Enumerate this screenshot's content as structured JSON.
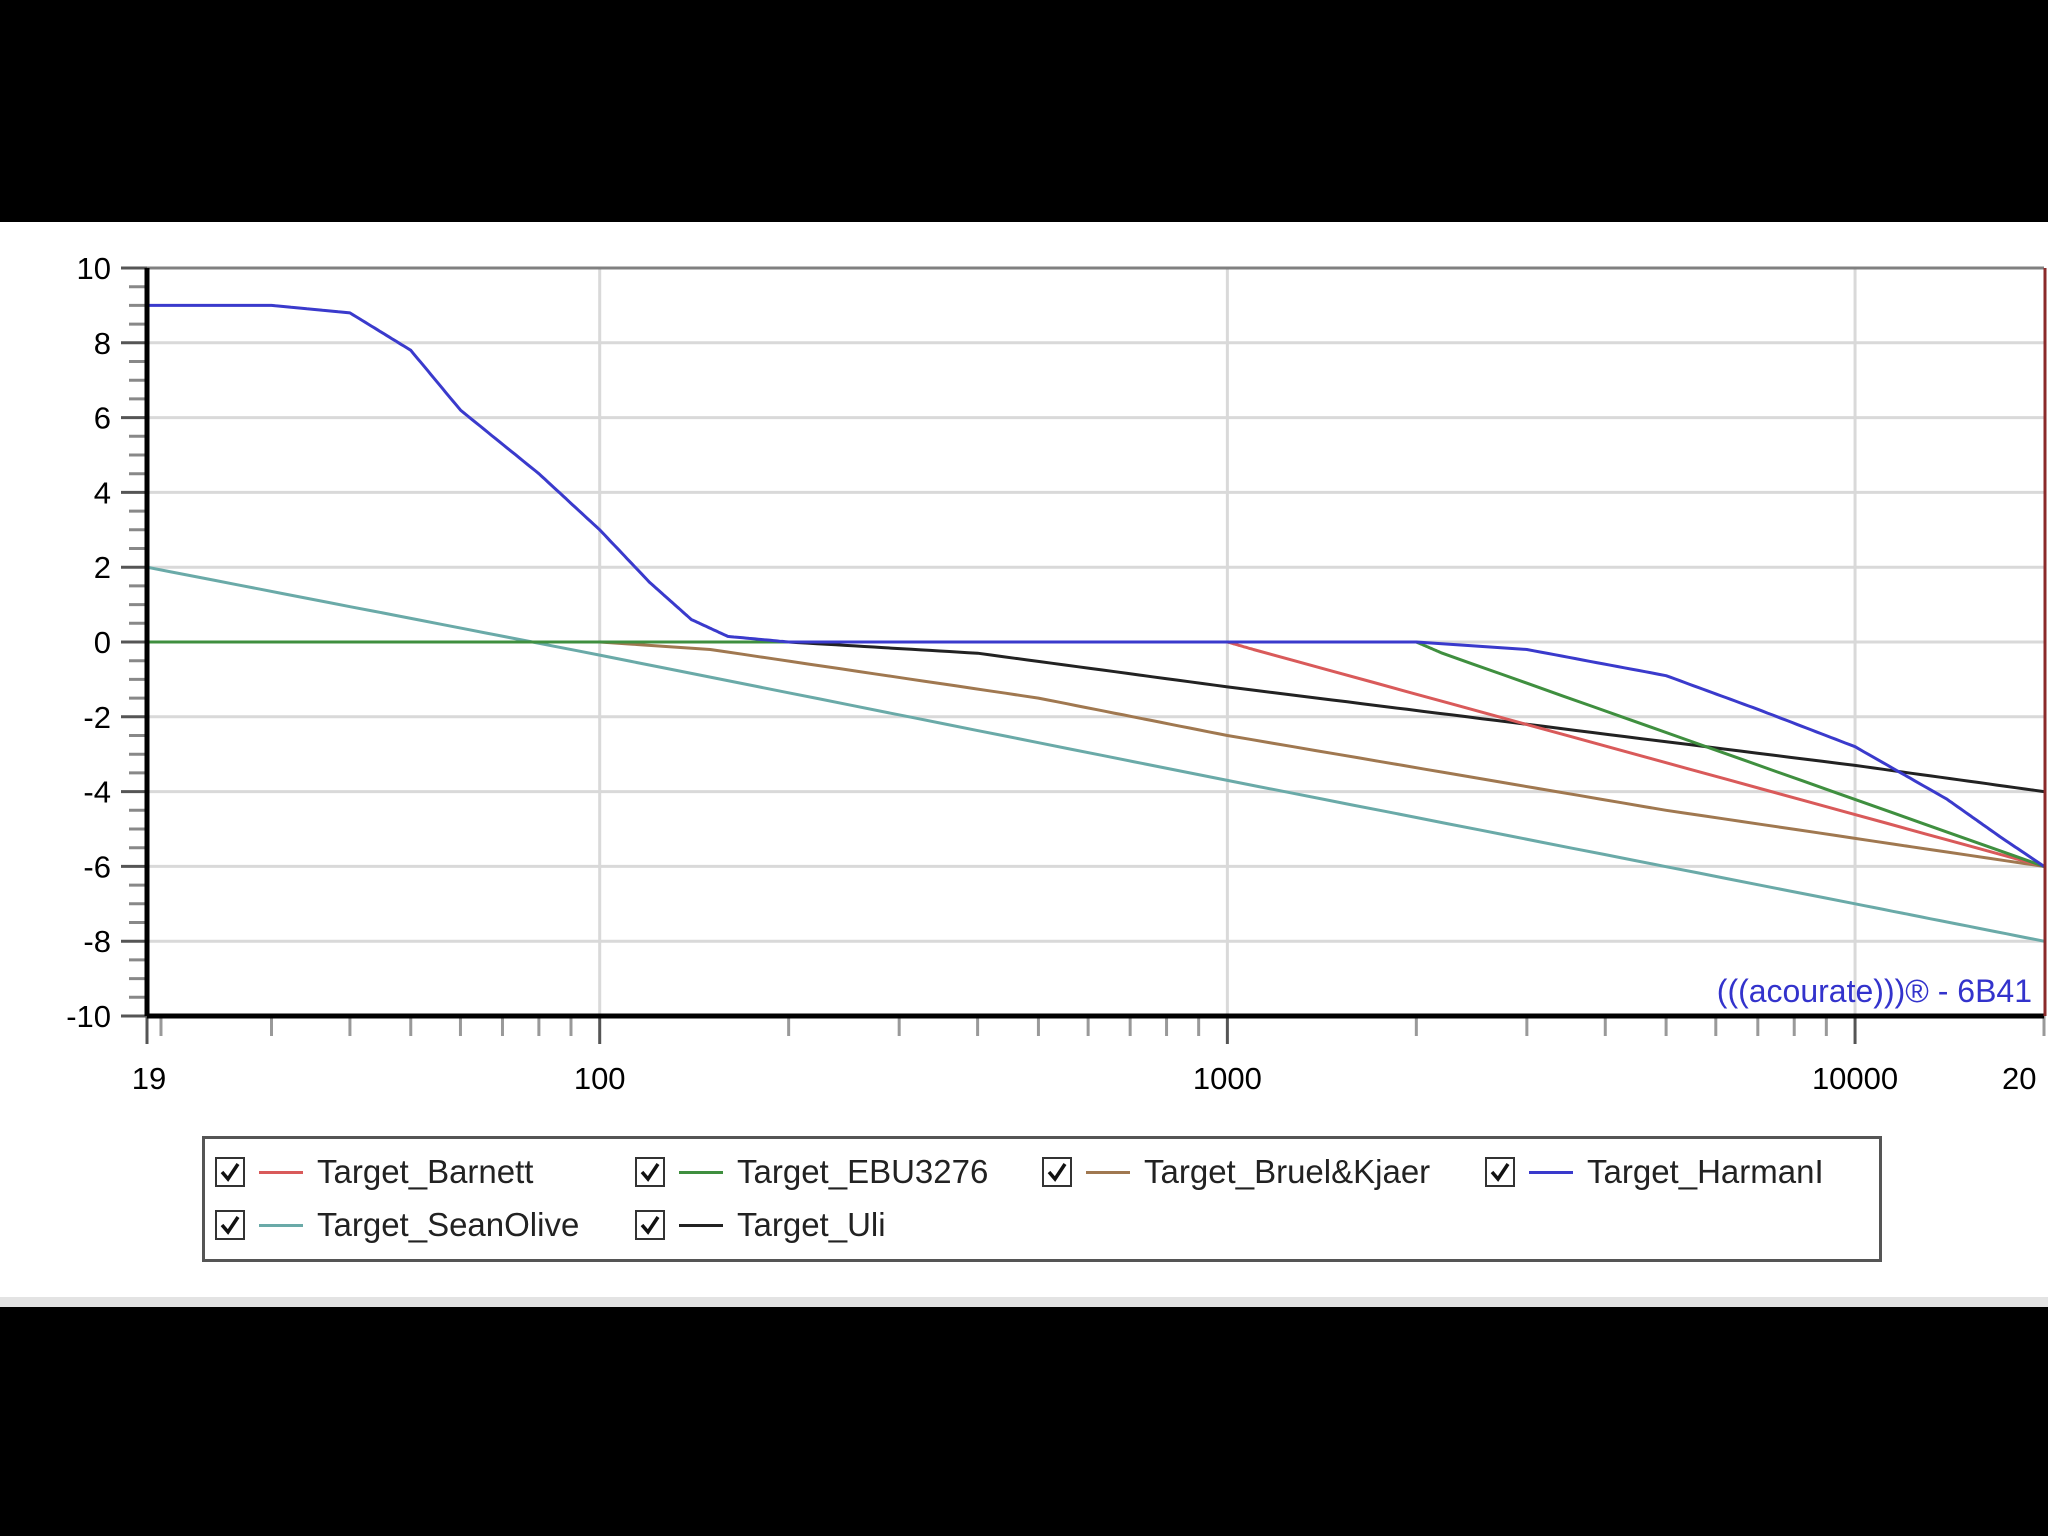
{
  "chart_data": {
    "type": "line",
    "title": "",
    "xlabel": "",
    "ylabel": "",
    "x_scale": "log",
    "xlim": [
      19,
      20000
    ],
    "ylim": [
      -10,
      10
    ],
    "grid": true,
    "legend_position": "bottom",
    "x_tick_labels": [
      "19",
      "100",
      "1000",
      "10000",
      "20"
    ],
    "y_tick_labels": [
      "10",
      "8",
      "6",
      "4",
      "2",
      "0",
      "-2",
      "-4",
      "-6",
      "-8",
      "-10"
    ],
    "watermark": "(((acourate)))® - 6B41",
    "series": [
      {
        "name": "Target_Barnett",
        "color": "#d95a5a",
        "checked": true,
        "points": [
          [
            19,
            0
          ],
          [
            1000,
            0
          ],
          [
            1100,
            -0.2
          ],
          [
            20000,
            -6
          ]
        ]
      },
      {
        "name": "Target_EBU3276",
        "color": "#3f8f3f",
        "checked": true,
        "points": [
          [
            19,
            0
          ],
          [
            2000,
            0
          ],
          [
            2200,
            -0.3
          ],
          [
            20000,
            -6
          ]
        ]
      },
      {
        "name": "Target_Bruel&Kjaer",
        "color": "#a07850",
        "checked": true,
        "points": [
          [
            19,
            0
          ],
          [
            100,
            0
          ],
          [
            150,
            -0.2
          ],
          [
            500,
            -1.5
          ],
          [
            1000,
            -2.5
          ],
          [
            5000,
            -4.5
          ],
          [
            20000,
            -6
          ]
        ]
      },
      {
        "name": "Target_HarmanI",
        "color": "#3a3acc",
        "checked": true,
        "points": [
          [
            19,
            9
          ],
          [
            30,
            9
          ],
          [
            40,
            8.8
          ],
          [
            50,
            7.8
          ],
          [
            60,
            6.2
          ],
          [
            80,
            4.5
          ],
          [
            100,
            3
          ],
          [
            120,
            1.6
          ],
          [
            140,
            0.6
          ],
          [
            160,
            0.15
          ],
          [
            200,
            0
          ],
          [
            2000,
            0
          ],
          [
            3000,
            -0.2
          ],
          [
            5000,
            -0.9
          ],
          [
            7000,
            -1.8
          ],
          [
            10000,
            -2.8
          ],
          [
            14000,
            -4.2
          ],
          [
            17000,
            -5.2
          ],
          [
            20000,
            -6
          ]
        ]
      },
      {
        "name": "Target_SeanOlive",
        "color": "#6aaaa8",
        "checked": true,
        "points": [
          [
            19,
            2
          ],
          [
            100,
            -0.35
          ],
          [
            1000,
            -3.7
          ],
          [
            10000,
            -7
          ],
          [
            20000,
            -8
          ]
        ]
      },
      {
        "name": "Target_Uli",
        "color": "#222222",
        "checked": true,
        "points": [
          [
            19,
            0
          ],
          [
            200,
            0
          ],
          [
            400,
            -0.3
          ],
          [
            1000,
            -1.2
          ],
          [
            3000,
            -2.2
          ],
          [
            10000,
            -3.3
          ],
          [
            20000,
            -4
          ]
        ]
      }
    ]
  }
}
